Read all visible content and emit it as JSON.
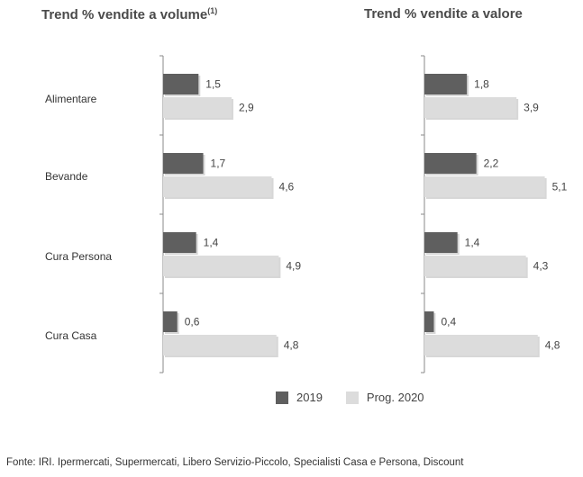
{
  "colors": {
    "series_2019": "#5f5f5f",
    "series_2020": "#dcdcdc",
    "axis": "#8a8a8a"
  },
  "chart_data": [
    {
      "type": "bar",
      "orientation": "horizontal",
      "title": "Trend % vendite a volume",
      "title_sup": "(1)",
      "categories": [
        "Alimentare",
        "Bevande",
        "Cura Persona",
        "Cura Casa"
      ],
      "series": [
        {
          "name": "2019",
          "values": [
            1.5,
            1.7,
            1.4,
            0.6
          ],
          "labels": [
            "1,5",
            "1,7",
            "1,4",
            "0,6"
          ]
        },
        {
          "name": "Prog. 2020",
          "values": [
            2.9,
            4.6,
            4.9,
            4.8
          ],
          "labels": [
            "2,9",
            "4,6",
            "4,9",
            "4,8"
          ]
        }
      ],
      "xlim": [
        0,
        6.5
      ],
      "grid": false
    },
    {
      "type": "bar",
      "orientation": "horizontal",
      "title": "Trend % vendite a valore",
      "categories": [
        "Alimentare",
        "Bevande",
        "Cura Persona",
        "Cura Casa"
      ],
      "series": [
        {
          "name": "2019",
          "values": [
            1.8,
            2.2,
            1.4,
            0.4
          ],
          "labels": [
            "1,8",
            "2,2",
            "1,4",
            "0,4"
          ]
        },
        {
          "name": "Prog. 2020",
          "values": [
            3.9,
            5.1,
            4.3,
            4.8
          ],
          "labels": [
            "3,9",
            "5,1",
            "4,3",
            "4,8"
          ]
        }
      ],
      "xlim": [
        0,
        6.5
      ],
      "grid": false
    }
  ],
  "legend": {
    "items": [
      "2019",
      "Prog. 2020"
    ],
    "position": "bottom"
  },
  "source": "Fonte: IRI. Ipermercati, Supermercati, Libero Servizio-Piccolo, Specialisti Casa e Persona, Discount"
}
